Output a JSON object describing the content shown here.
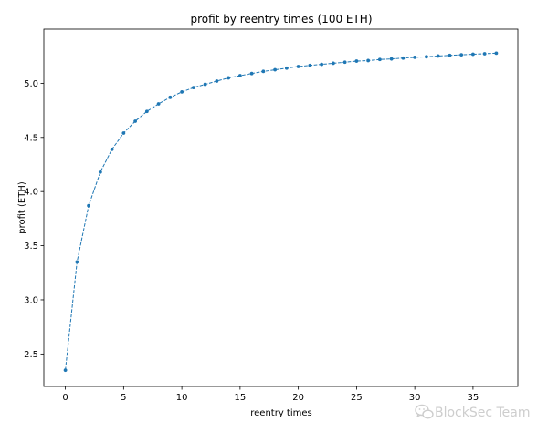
{
  "chart_data": {
    "type": "line",
    "title": "profit by reentry times (100 ETH)",
    "xlabel": "reentry times",
    "ylabel": "profit (ETH)",
    "xlim": [
      -1.85,
      38.85
    ],
    "ylim": [
      2.2,
      5.5
    ],
    "xticks": [
      0,
      5,
      10,
      15,
      20,
      25,
      30,
      35
    ],
    "xtick_labels": [
      "0",
      "5",
      "10",
      "15",
      "20",
      "25",
      "30",
      "35"
    ],
    "yticks": [
      2.5,
      3.0,
      3.5,
      4.0,
      4.5,
      5.0
    ],
    "ytick_labels": [
      "2.5",
      "3.0",
      "3.5",
      "4.0",
      "4.5",
      "5.0"
    ],
    "grid": false,
    "legend": "none",
    "line_style": "dashed",
    "marker": "circle",
    "color": "#1f77b4",
    "series": [
      {
        "x": [
          0,
          1,
          2,
          3,
          4,
          5,
          6,
          7,
          8,
          9,
          10,
          11,
          12,
          13,
          14,
          15,
          16,
          17,
          18,
          19,
          20,
          21,
          22,
          23,
          24,
          25,
          26,
          27,
          28,
          29,
          30,
          31,
          32,
          33,
          34,
          35,
          36,
          37
        ],
        "y": [
          2.35,
          3.35,
          3.87,
          4.18,
          4.39,
          4.54,
          4.65,
          4.74,
          4.81,
          4.87,
          4.92,
          4.96,
          4.99,
          5.02,
          5.05,
          5.07,
          5.09,
          5.11,
          5.125,
          5.14,
          5.155,
          5.165,
          5.175,
          5.185,
          5.195,
          5.205,
          5.21,
          5.22,
          5.225,
          5.233,
          5.24,
          5.245,
          5.252,
          5.258,
          5.263,
          5.268,
          5.273,
          5.278
        ]
      }
    ]
  },
  "watermark": {
    "icon": "wechat-icon",
    "text": "BlockSec Team"
  }
}
